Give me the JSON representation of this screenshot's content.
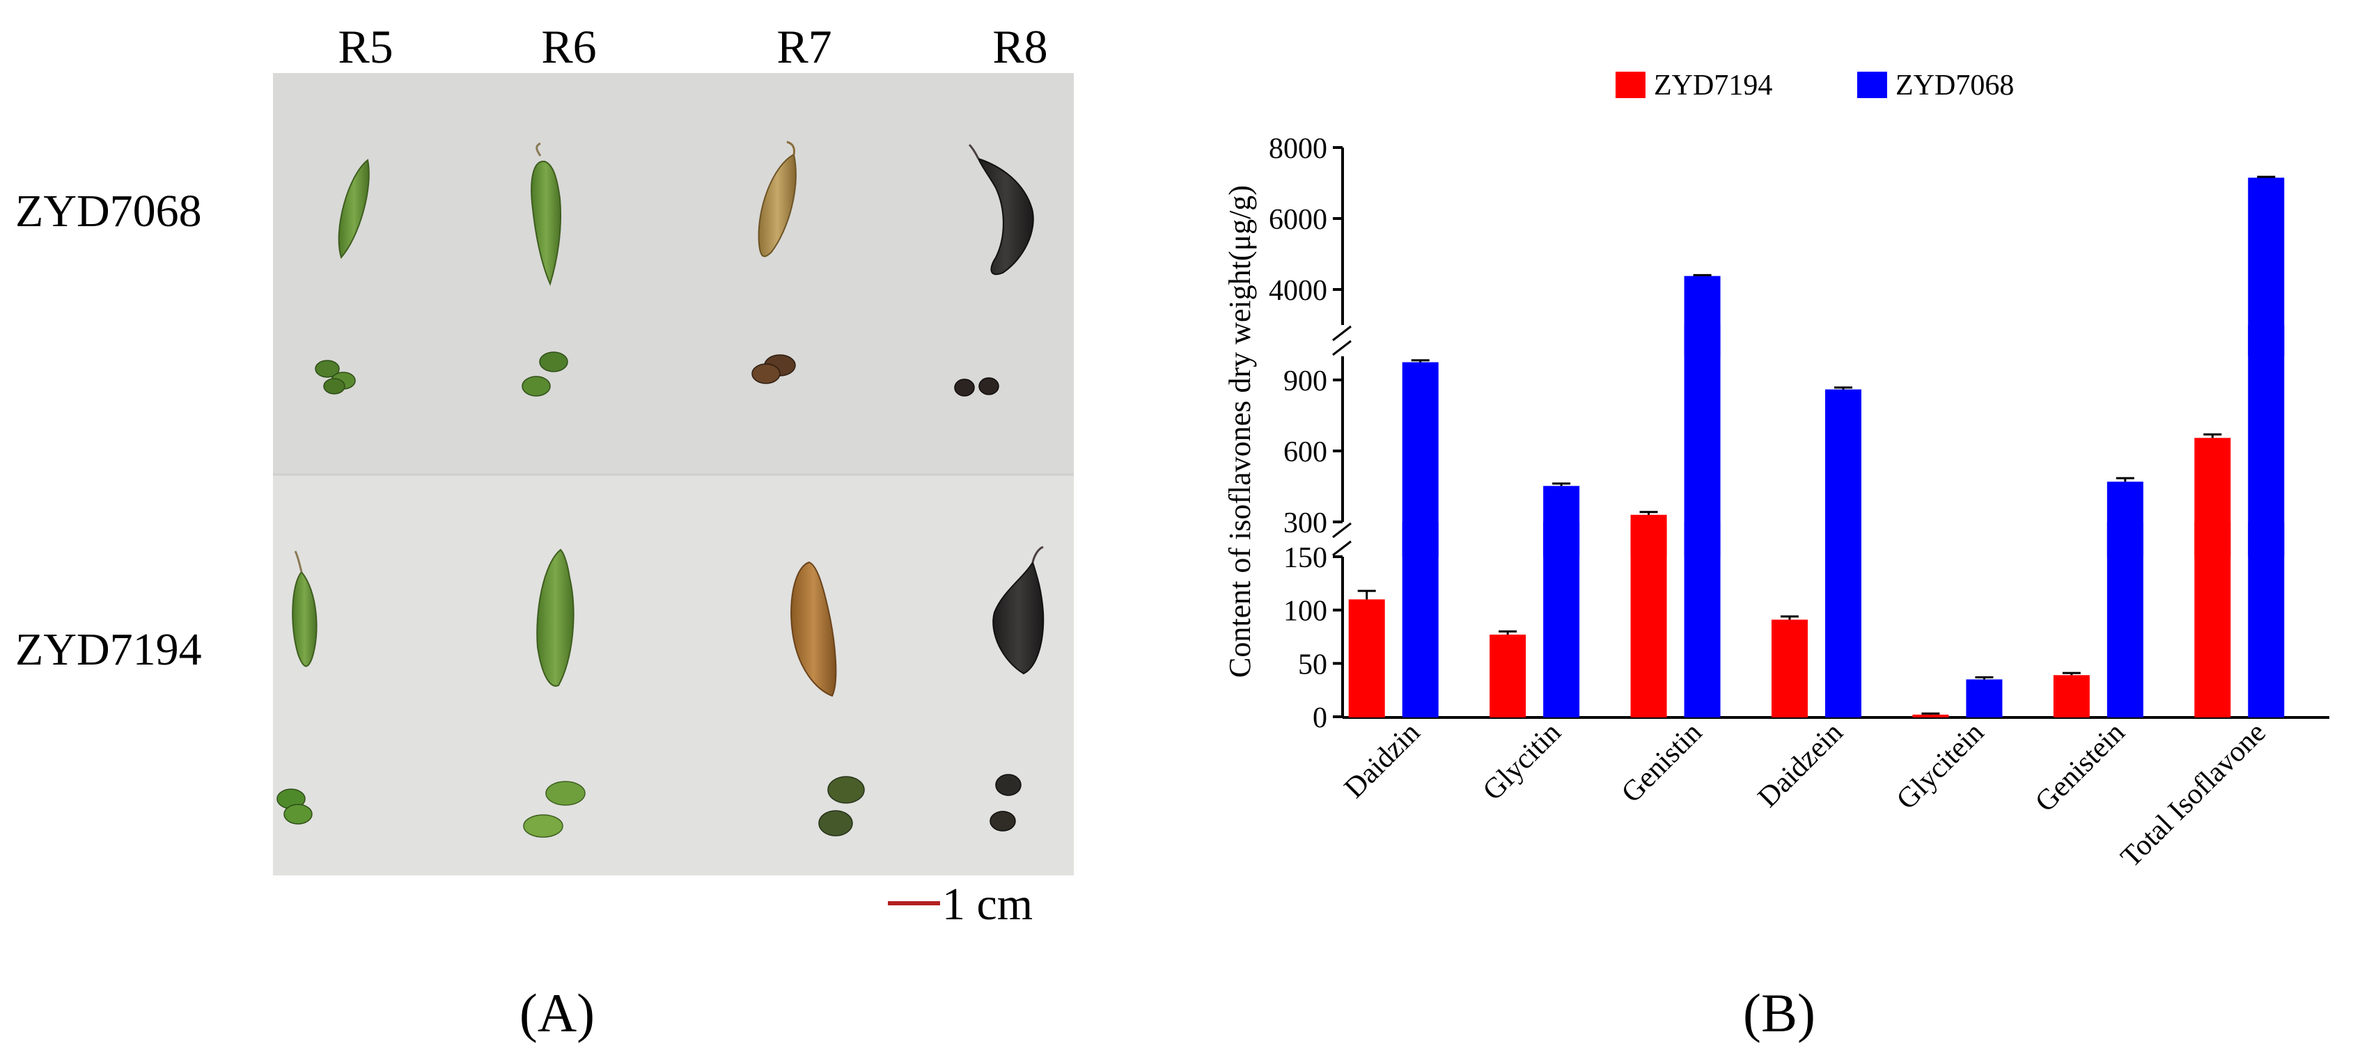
{
  "panel_a": {
    "stage_labels": [
      "R5",
      "R6",
      "R7",
      "R8"
    ],
    "row_labels": [
      "ZYD7068",
      "ZYD7194"
    ],
    "scale_bar_label": "1 cm",
    "panel_label": "(A)",
    "colors": {
      "background": "#dcdcdb",
      "pod_green": "#5f8a32",
      "pod_yellow": "#b09353",
      "pod_dark": "#2d2a2a",
      "scale_bar": "#b32020"
    }
  },
  "panel_b": {
    "panel_label": "(B)"
  },
  "chart_data": {
    "type": "bar",
    "title": "",
    "xlabel": "",
    "ylabel": "Content of isoflavones dry weight(μg/g)",
    "categories": [
      "Daidzin",
      "Glycitin",
      "Genistin",
      "Daidzein",
      "Glycitein",
      "Genistein",
      "Total Isoflavone"
    ],
    "series": [
      {
        "name": "ZYD7194",
        "color": "#ff0000",
        "values": [
          110,
          77,
          330,
          91,
          2,
          39,
          655
        ],
        "errors": [
          8,
          3,
          12,
          3,
          1,
          2,
          15
        ]
      },
      {
        "name": "ZYD7068",
        "color": "#0000ff",
        "values": [
          975,
          452,
          4380,
          860,
          35,
          470,
          7150
        ],
        "errors": [
          8,
          10,
          25,
          8,
          2,
          15,
          25
        ]
      }
    ],
    "y_segments": [
      {
        "range": [
          0,
          150
        ],
        "ticks": [
          0,
          50,
          100,
          150
        ]
      },
      {
        "range": [
          300,
          1000
        ],
        "ticks": [
          300,
          600,
          900
        ]
      },
      {
        "range": [
          3000,
          8000
        ],
        "ticks": [
          4000,
          6000,
          8000
        ]
      }
    ],
    "legend_position": "top-center",
    "grid": false
  }
}
